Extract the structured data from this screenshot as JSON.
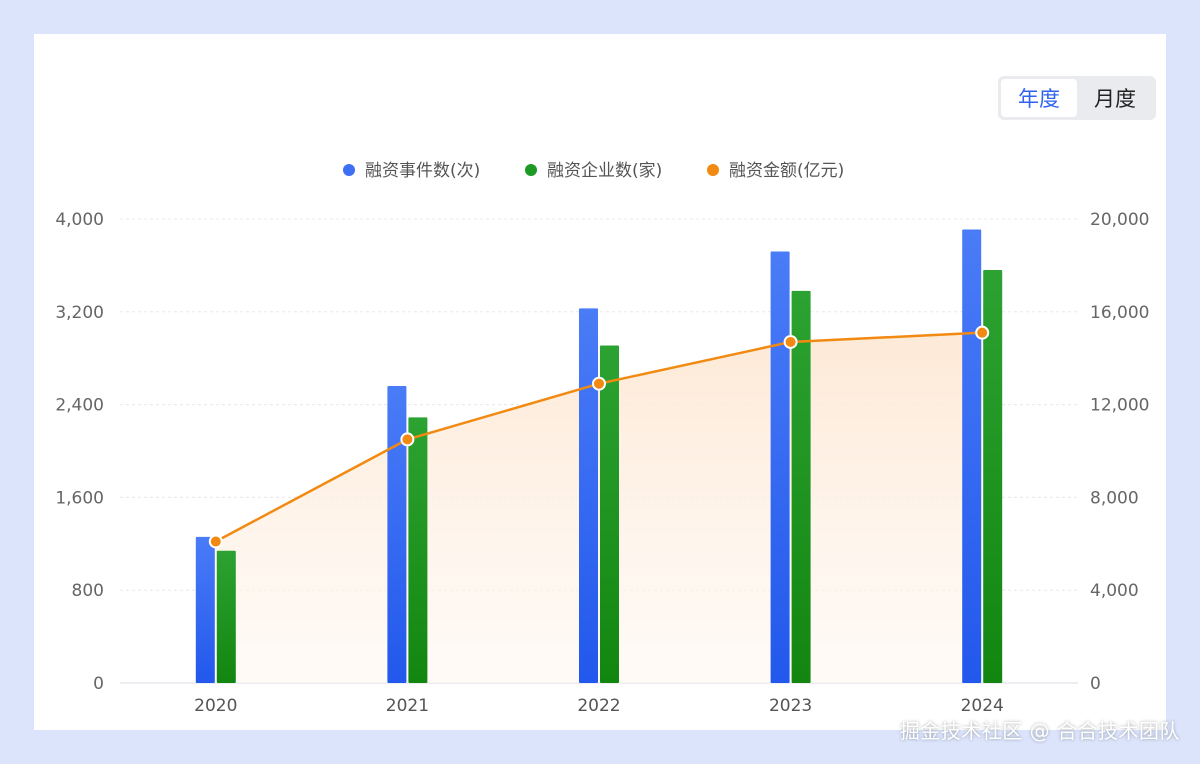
{
  "toggle": {
    "items": [
      "年度",
      "月度"
    ],
    "selected": "年度"
  },
  "watermark": "掘金技术社区 @ 合合技术团队",
  "colors": {
    "blue": "#3d6ff5",
    "green": "#1d9a26",
    "orange": "#f28a12"
  },
  "chart_data": {
    "type": "bar",
    "categories": [
      "2020",
      "2021",
      "2022",
      "2023",
      "2024"
    ],
    "series": [
      {
        "name": "融资事件数(次)",
        "type": "bar",
        "axis": "left",
        "values": [
          1260,
          2560,
          3230,
          3720,
          3910
        ]
      },
      {
        "name": "融资企业数(家)",
        "type": "bar",
        "axis": "left",
        "values": [
          1140,
          2290,
          2910,
          3380,
          3560
        ]
      },
      {
        "name": "融资金额(亿元)",
        "type": "line",
        "axis": "right",
        "area": true,
        "values": [
          6100,
          10500,
          12900,
          14700,
          15100
        ]
      }
    ],
    "ylim_left": [
      0,
      4000
    ],
    "yticks_left": [
      "0",
      "800",
      "1,600",
      "2,400",
      "3,200",
      "4,000"
    ],
    "ylim_right": [
      0,
      20000
    ],
    "yticks_right": [
      "0",
      "4,000",
      "8,000",
      "12,000",
      "16,000",
      "20,000"
    ],
    "legend_position": "top-center",
    "grid": true
  }
}
